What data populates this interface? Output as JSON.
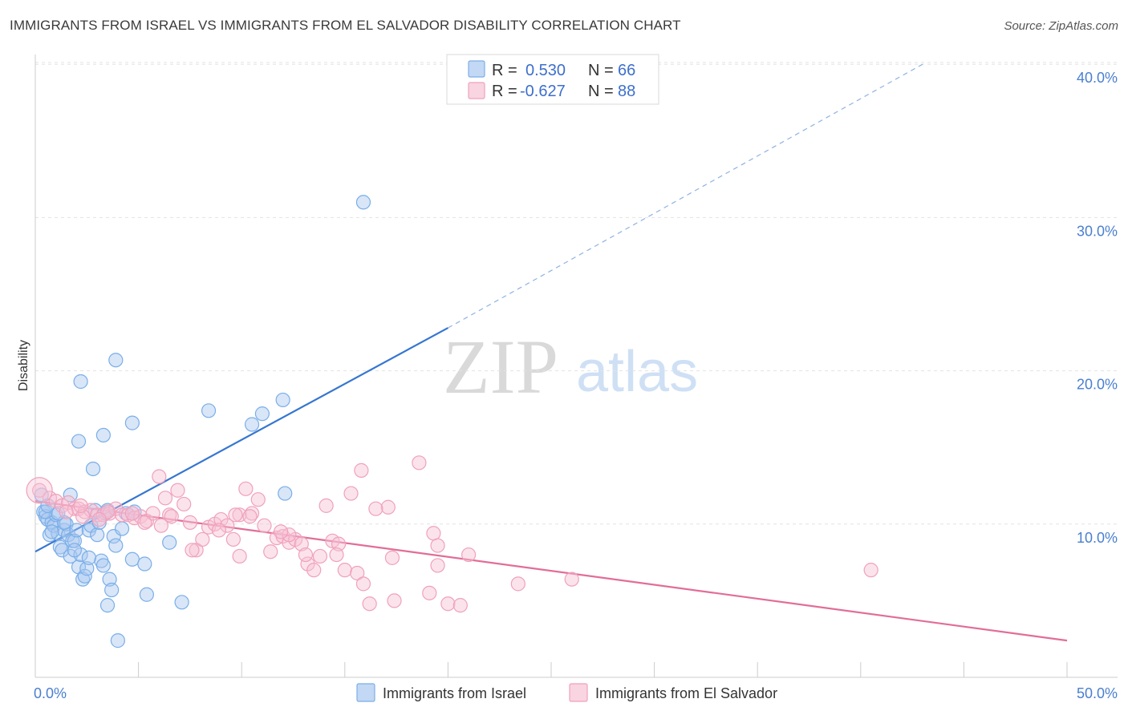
{
  "title": "IMMIGRANTS FROM ISRAEL VS IMMIGRANTS FROM EL SALVADOR DISABILITY CORRELATION CHART",
  "source": "Source: ZipAtlas.com",
  "watermark": {
    "zip": "ZIP",
    "atlas": "atlas"
  },
  "stats": [
    {
      "r_label": "R =",
      "r": "0.530",
      "n_label": "N =",
      "n": "66",
      "color": "#7aaee8"
    },
    {
      "r_label": "R =",
      "r": "-0.627",
      "n_label": "N =",
      "n": "88",
      "color": "#f0a1bb"
    }
  ],
  "chart_data": {
    "type": "scatter",
    "ylabel": "Disability",
    "xlim": [
      0,
      50
    ],
    "ylim": [
      0,
      40
    ],
    "x_tick_labels": [
      {
        "v": 0,
        "label": "0.0%"
      },
      {
        "v": 50,
        "label": "50.0%"
      }
    ],
    "y_ticks": [
      {
        "v": 10,
        "label": "10.0%"
      },
      {
        "v": 20,
        "label": "20.0%"
      },
      {
        "v": 30,
        "label": "30.0%"
      },
      {
        "v": 40,
        "label": "40.0%"
      }
    ],
    "grid": true,
    "legend_position": "bottom",
    "series": [
      {
        "name": "Immigrants from Israel",
        "color": "#7aaee8",
        "fill": "#a9c8f0",
        "trend": {
          "x0": 0,
          "y0": 8.2,
          "x1": 20,
          "y1": 22.8,
          "dash_to_x": 43,
          "dash_to_y": 40.0
        },
        "points": [
          [
            0.3,
            11.9
          ],
          [
            0.4,
            10.8
          ],
          [
            0.5,
            10.5
          ],
          [
            0.6,
            10.3
          ],
          [
            0.7,
            9.3
          ],
          [
            0.8,
            10.1
          ],
          [
            0.9,
            9.9
          ],
          [
            1.0,
            10.6
          ],
          [
            1.1,
            9.4
          ],
          [
            1.2,
            8.5
          ],
          [
            1.3,
            8.3
          ],
          [
            1.4,
            9.6
          ],
          [
            1.5,
            10.0
          ],
          [
            1.6,
            9.3
          ],
          [
            1.7,
            7.9
          ],
          [
            1.8,
            8.9
          ],
          [
            1.9,
            8.9
          ],
          [
            2.0,
            9.6
          ],
          [
            2.1,
            7.2
          ],
          [
            2.2,
            8.0
          ],
          [
            2.3,
            6.4
          ],
          [
            2.4,
            6.6
          ],
          [
            2.5,
            7.1
          ],
          [
            2.6,
            9.6
          ],
          [
            2.7,
            9.9
          ],
          [
            2.8,
            13.6
          ],
          [
            2.9,
            10.9
          ],
          [
            3.0,
            9.3
          ],
          [
            3.1,
            10.1
          ],
          [
            3.2,
            7.6
          ],
          [
            3.3,
            15.8
          ],
          [
            3.4,
            10.7
          ],
          [
            3.5,
            4.7
          ],
          [
            3.6,
            6.4
          ],
          [
            3.7,
            5.7
          ],
          [
            3.8,
            9.2
          ],
          [
            3.9,
            8.6
          ],
          [
            4.0,
            2.4
          ],
          [
            4.2,
            9.7
          ],
          [
            4.4,
            10.7
          ],
          [
            4.8,
            10.8
          ],
          [
            4.7,
            7.7
          ],
          [
            5.3,
            7.4
          ],
          [
            5.4,
            5.4
          ],
          [
            3.9,
            20.7
          ],
          [
            2.1,
            15.4
          ],
          [
            2.2,
            19.3
          ],
          [
            4.7,
            16.6
          ],
          [
            6.5,
            8.8
          ],
          [
            7.1,
            4.9
          ],
          [
            8.4,
            17.4
          ],
          [
            10.5,
            16.5
          ],
          [
            11.0,
            17.2
          ],
          [
            12.0,
            18.1
          ],
          [
            12.1,
            12.0
          ],
          [
            15.9,
            31.0
          ],
          [
            0.5,
            10.8
          ],
          [
            1.7,
            11.9
          ],
          [
            1.4,
            10.1
          ],
          [
            0.8,
            9.5
          ],
          [
            3.3,
            7.3
          ],
          [
            2.6,
            7.8
          ],
          [
            1.1,
            10.7
          ],
          [
            0.6,
            11.2
          ],
          [
            1.9,
            8.3
          ],
          [
            3.5,
            10.9
          ]
        ]
      },
      {
        "name": "Immigrants from El Salvador",
        "color": "#f0a1bb",
        "fill": "#f7c2d4",
        "trend": {
          "x0": 0,
          "y0": 11.5,
          "x1": 50,
          "y1": 2.4
        },
        "points": [
          [
            0.2,
            12.2
          ],
          [
            0.7,
            11.7
          ],
          [
            1.0,
            11.5
          ],
          [
            1.3,
            11.2
          ],
          [
            1.6,
            11.4
          ],
          [
            1.9,
            11.0
          ],
          [
            2.1,
            11.0
          ],
          [
            2.4,
            10.8
          ],
          [
            2.7,
            10.9
          ],
          [
            3.0,
            10.6
          ],
          [
            3.3,
            10.6
          ],
          [
            3.6,
            10.7
          ],
          [
            3.9,
            11.0
          ],
          [
            4.2,
            10.6
          ],
          [
            4.5,
            10.6
          ],
          [
            4.8,
            10.4
          ],
          [
            5.1,
            10.5
          ],
          [
            5.4,
            10.2
          ],
          [
            5.7,
            10.7
          ],
          [
            6.0,
            13.1
          ],
          [
            6.3,
            11.7
          ],
          [
            6.5,
            10.6
          ],
          [
            6.9,
            12.2
          ],
          [
            7.2,
            11.3
          ],
          [
            7.5,
            10.1
          ],
          [
            7.8,
            8.3
          ],
          [
            8.1,
            9.0
          ],
          [
            8.4,
            9.8
          ],
          [
            8.7,
            10.0
          ],
          [
            9.0,
            10.3
          ],
          [
            9.3,
            9.9
          ],
          [
            9.6,
            9.0
          ],
          [
            9.9,
            10.6
          ],
          [
            10.2,
            12.3
          ],
          [
            10.5,
            10.7
          ],
          [
            10.8,
            11.6
          ],
          [
            11.1,
            9.9
          ],
          [
            11.4,
            8.2
          ],
          [
            11.7,
            9.1
          ],
          [
            12.0,
            9.2
          ],
          [
            12.3,
            8.8
          ],
          [
            12.6,
            9.0
          ],
          [
            12.9,
            8.7
          ],
          [
            13.2,
            7.4
          ],
          [
            13.5,
            7.0
          ],
          [
            13.8,
            7.9
          ],
          [
            14.1,
            11.2
          ],
          [
            14.4,
            8.9
          ],
          [
            14.7,
            8.7
          ],
          [
            15.0,
            7.0
          ],
          [
            15.3,
            12.0
          ],
          [
            15.6,
            6.8
          ],
          [
            15.9,
            6.1
          ],
          [
            16.2,
            4.8
          ],
          [
            17.1,
            11.1
          ],
          [
            17.3,
            7.8
          ],
          [
            17.4,
            5.0
          ],
          [
            18.6,
            14.0
          ],
          [
            19.3,
            9.4
          ],
          [
            19.5,
            8.6
          ],
          [
            19.5,
            7.3
          ],
          [
            19.1,
            5.5
          ],
          [
            20.0,
            4.8
          ],
          [
            20.6,
            4.7
          ],
          [
            21.0,
            8.0
          ],
          [
            23.4,
            6.1
          ],
          [
            26.0,
            6.4
          ],
          [
            40.5,
            7.0
          ],
          [
            15.8,
            13.5
          ],
          [
            12.3,
            9.3
          ],
          [
            9.9,
            7.9
          ],
          [
            7.6,
            8.3
          ],
          [
            6.1,
            9.9
          ],
          [
            5.3,
            10.1
          ],
          [
            4.7,
            10.7
          ],
          [
            3.5,
            10.8
          ],
          [
            2.3,
            10.5
          ],
          [
            1.5,
            10.8
          ],
          [
            8.9,
            9.6
          ],
          [
            10.4,
            10.5
          ],
          [
            11.9,
            9.5
          ],
          [
            13.1,
            8.0
          ],
          [
            14.6,
            8.0
          ],
          [
            6.6,
            10.5
          ],
          [
            9.7,
            10.6
          ],
          [
            3.1,
            10.3
          ],
          [
            2.2,
            11.2
          ],
          [
            16.5,
            11.0
          ]
        ]
      }
    ]
  }
}
